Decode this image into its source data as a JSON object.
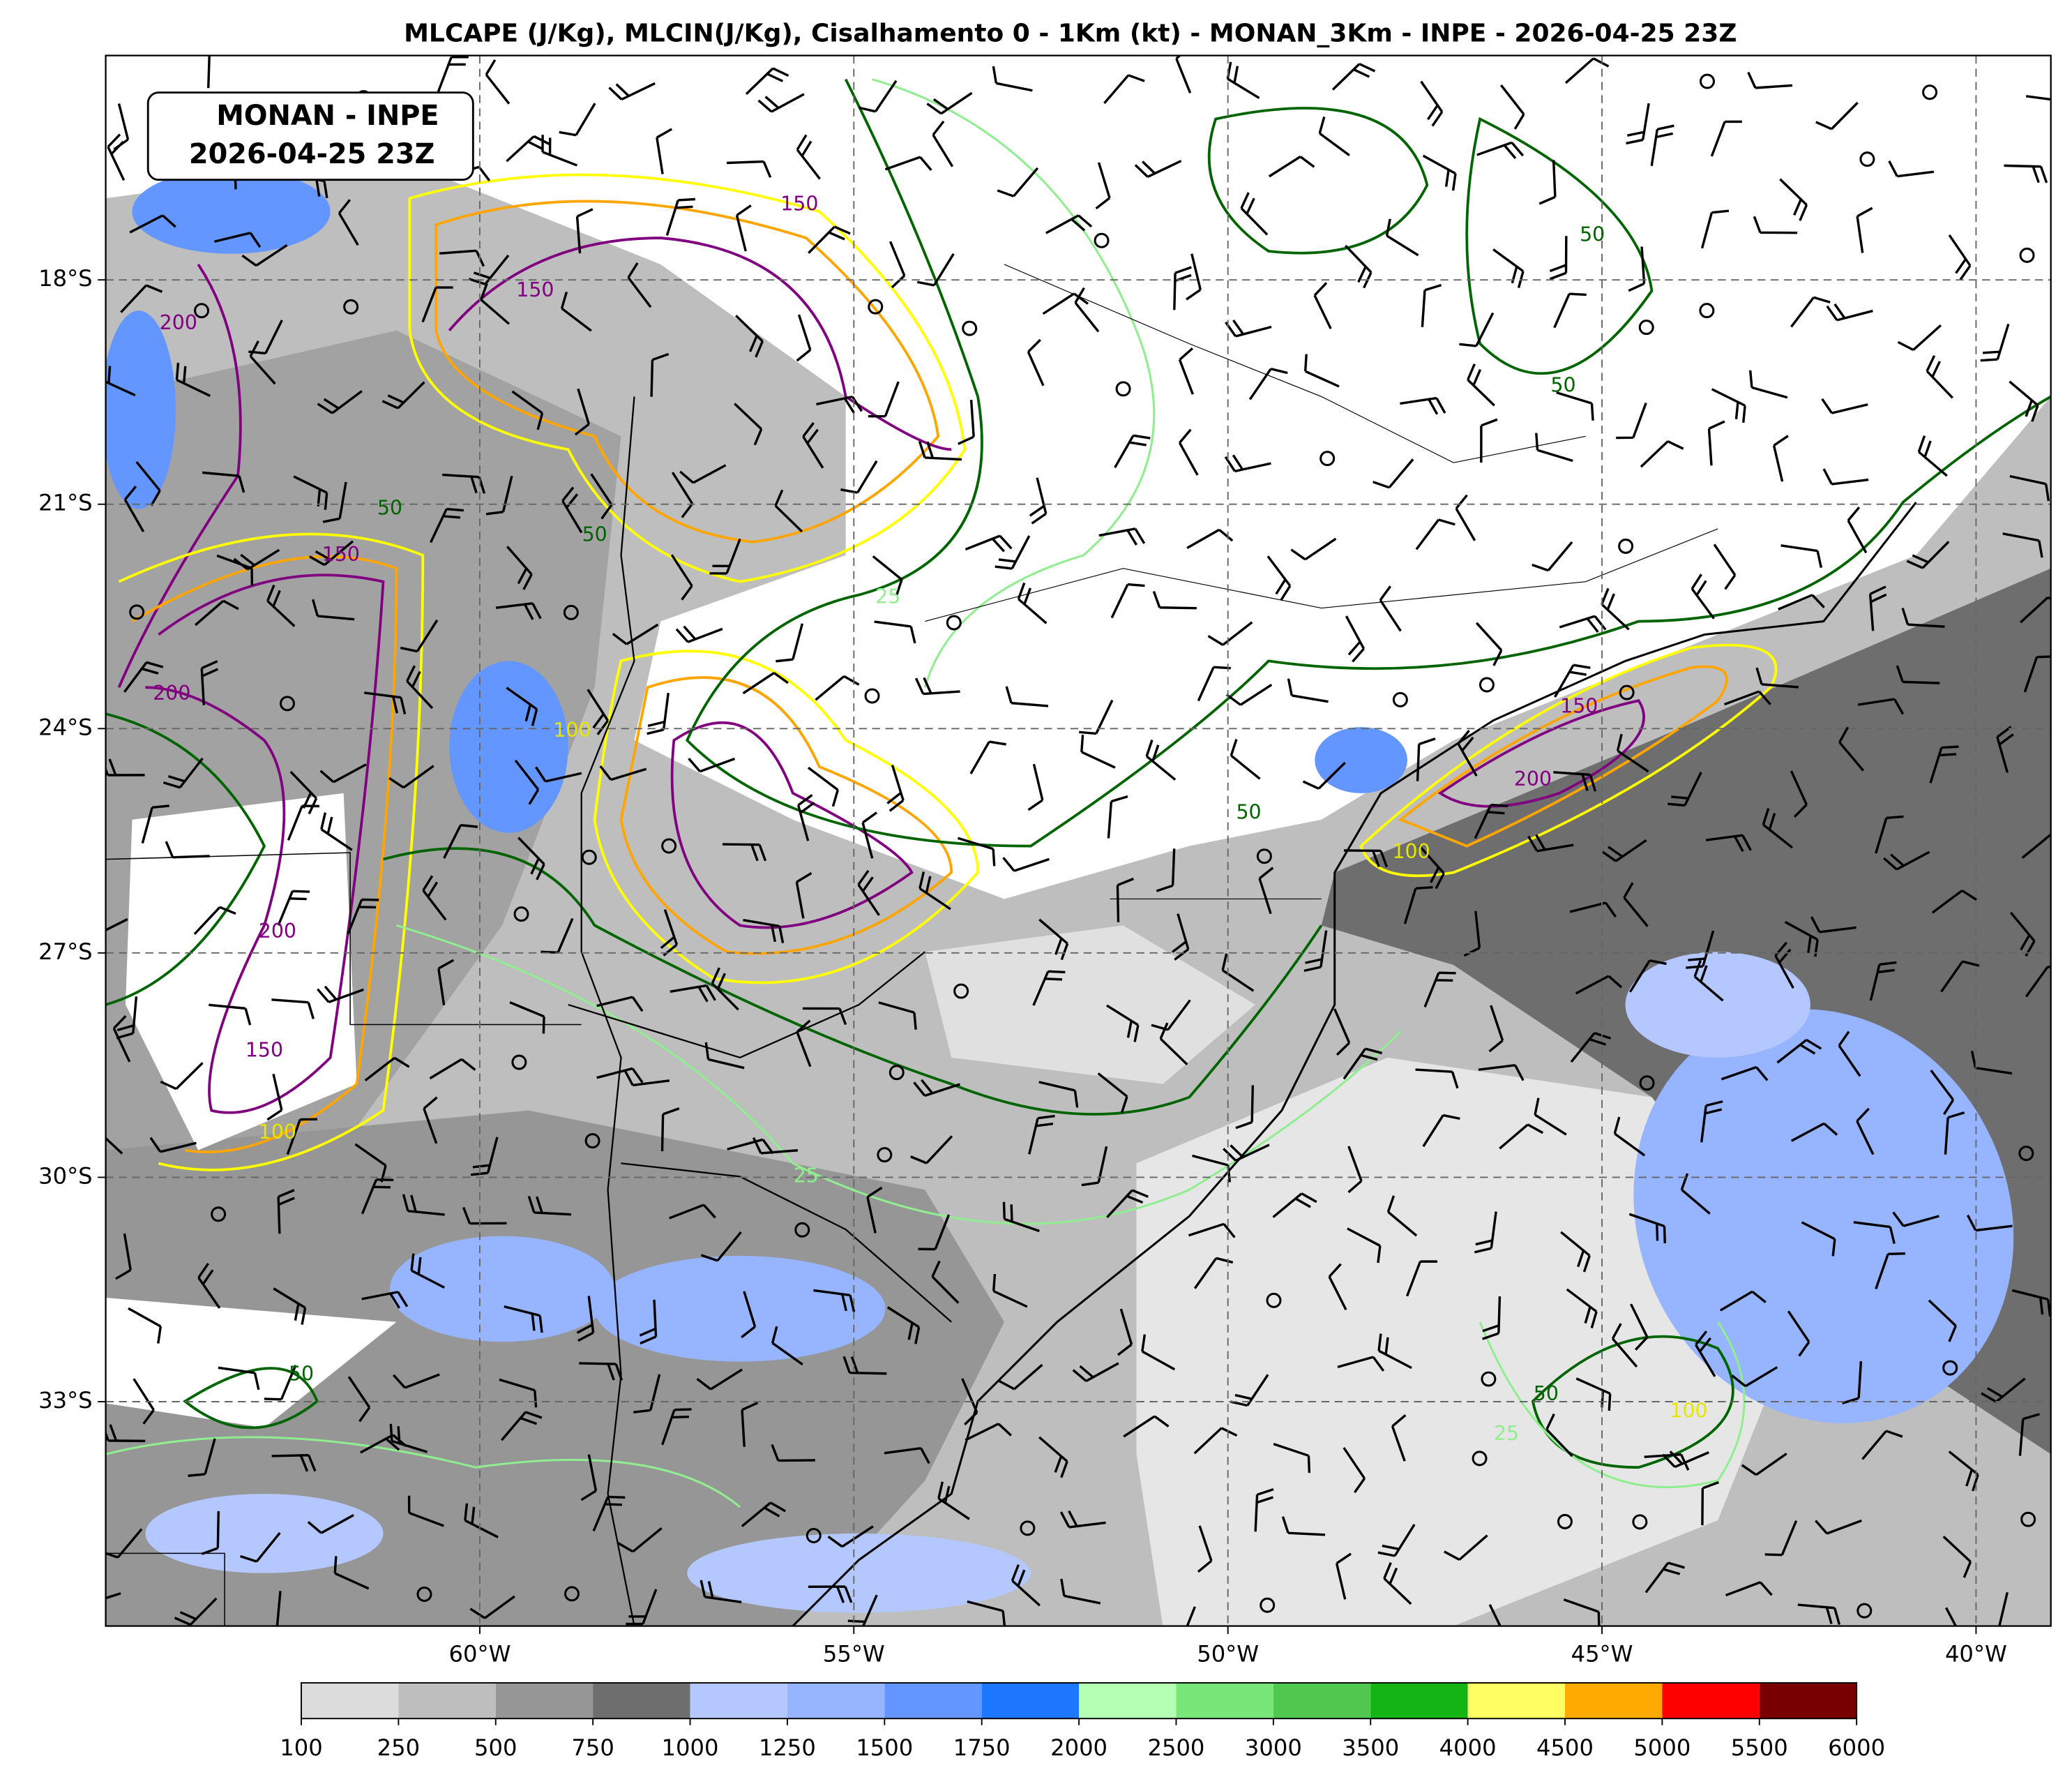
{
  "map": {
    "type": "weather-map",
    "title": "MLCAPE (J/Kg), MLCIN(J/Kg), Cisalhamento 0 - 1Km (kt) - MONAN_3Km - INPE - 2026-04-25 23Z",
    "label_box": [
      "MONAN - INPE",
      "2026-04-25 23Z"
    ],
    "lonlim": [
      -65,
      -39
    ],
    "latlim": [
      -36,
      -15
    ],
    "lonticks": [
      {
        "value": -60,
        "label": "60°W"
      },
      {
        "value": -55,
        "label": "55°W"
      },
      {
        "value": -50,
        "label": "50°W"
      },
      {
        "value": -45,
        "label": "45°W"
      },
      {
        "value": -40,
        "label": "40°W"
      }
    ],
    "latticks": [
      {
        "value": -18,
        "label": "18°S"
      },
      {
        "value": -21,
        "label": "21°S"
      },
      {
        "value": -24,
        "label": "24°S"
      },
      {
        "value": -27,
        "label": "27°S"
      },
      {
        "value": -30,
        "label": "30°S"
      },
      {
        "value": -33,
        "label": "33°S"
      }
    ],
    "grid": true,
    "colorbar": {
      "bounds": [
        100,
        250,
        500,
        750,
        1000,
        1250,
        1500,
        1750,
        2000,
        2500,
        3000,
        3500,
        4000,
        4500,
        5000,
        5500,
        6000
      ],
      "colors": [
        "#dcdcdc",
        "#bebebe",
        "#969696",
        "#6e6e6e",
        "#b4c8ff",
        "#96b4ff",
        "#6496ff",
        "#1e78ff",
        "#b4ffb4",
        "#78e678",
        "#50c850",
        "#14b414",
        "#ffff64",
        "#ffaa00",
        "#ff0000",
        "#780000"
      ]
    },
    "contour_labels": [
      {
        "value": 200,
        "color": "#800080"
      },
      {
        "value": 150,
        "color": "#800080"
      },
      {
        "value": 150,
        "color": "#800080"
      },
      {
        "value": 150,
        "color": "#800080"
      },
      {
        "value": 200,
        "color": "#800080"
      },
      {
        "value": 200,
        "color": "#800080"
      },
      {
        "value": 150,
        "color": "#800080"
      },
      {
        "value": 100,
        "color": "#e6e600"
      },
      {
        "value": 50,
        "color": "#006400"
      },
      {
        "value": 50,
        "color": "#006400"
      },
      {
        "value": 25,
        "color": "#90ee90"
      },
      {
        "value": 50,
        "color": "#006400"
      },
      {
        "value": 50,
        "color": "#006400"
      },
      {
        "value": 200,
        "color": "#800080"
      },
      {
        "value": 150,
        "color": "#800080"
      },
      {
        "value": 100,
        "color": "#e6e600"
      },
      {
        "value": 50,
        "color": "#006400"
      },
      {
        "value": 100,
        "color": "#e6e600"
      },
      {
        "value": 50,
        "color": "#006400"
      },
      {
        "value": 25,
        "color": "#90ee90"
      },
      {
        "value": 25,
        "color": "#90ee90"
      },
      {
        "value": 50,
        "color": "#006400"
      },
      {
        "value": 100,
        "color": "#e6e600"
      }
    ]
  }
}
